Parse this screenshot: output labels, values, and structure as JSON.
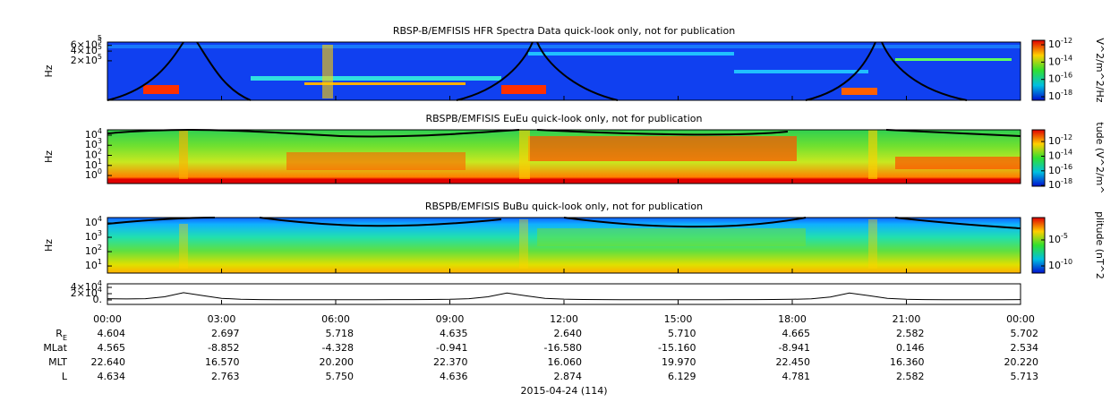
{
  "panels": [
    {
      "title": "RBSP-B/EMFISIS  HFR Spectra Data quick-look only, not for publication",
      "ylabel": "Hz",
      "ylim": [
        12000,
        760000
      ],
      "log": true,
      "yticks": [
        {
          "value": 760000,
          "exponent": "5"
        },
        {
          "value": 600000,
          "label": "6×10",
          "exponent": "5"
        },
        {
          "value": 400000,
          "label": "4×10",
          "exponent": "5"
        },
        {
          "value": 200000,
          "label": "2×10",
          "exponent": "5"
        }
      ],
      "colorbar": {
        "label": "V^2/m^2/Hz",
        "clim": [
          3.9e-19,
          3.3e-12
        ],
        "ticks": [
          {
            "value": 1e-12,
            "label": "10",
            "exponent": "-12"
          },
          {
            "value": 1e-14,
            "label": "10",
            "exponent": "-14"
          },
          {
            "value": 1e-16,
            "label": "10",
            "exponent": "-16"
          },
          {
            "value": 1e-18,
            "label": "10",
            "exponent": "-18"
          }
        ]
      }
    },
    {
      "title": "RBSPB/EMFISIS  EuEu quick-look only, not for publication",
      "ylabel": "Hz",
      "ylim": [
        0.16,
        34000
      ],
      "log": true,
      "yticks": [
        {
          "value": 10000,
          "label": "10",
          "exponent": "4"
        },
        {
          "value": 1000,
          "label": "10",
          "exponent": "3"
        },
        {
          "value": 100,
          "label": "10",
          "exponent": "2"
        },
        {
          "value": 10,
          "label": "10",
          "exponent": "1"
        },
        {
          "value": 1,
          "label": "10",
          "exponent": "0"
        }
      ],
      "colorbar": {
        "label": "tude (V^2/m^",
        "clim": [
          7.9e-19,
          4e-11
        ],
        "ticks": [
          {
            "value": 1e-12,
            "label": "10",
            "exponent": "-12"
          },
          {
            "value": 1e-14,
            "label": "10",
            "exponent": "-14"
          },
          {
            "value": 1e-16,
            "label": "10",
            "exponent": "-16"
          },
          {
            "value": 1e-18,
            "label": "10",
            "exponent": "-18"
          }
        ]
      }
    },
    {
      "title": "RBSPB/EMFISIS  BuBu quick-look only, not for publication",
      "ylabel": "Hz",
      "ylim": [
        3.2,
        23700
      ],
      "log": true,
      "yticks": [
        {
          "value": 10000,
          "label": "10",
          "exponent": "4"
        },
        {
          "value": 1000,
          "label": "10",
          "exponent": "3"
        },
        {
          "value": 100,
          "label": "10",
          "exponent": "2"
        },
        {
          "value": 10,
          "label": "10",
          "exponent": "1"
        }
      ],
      "colorbar": {
        "label": "plitude (nT^2",
        "clim": [
          4.2e-12,
          0.2
        ],
        "ticks": [
          {
            "value": 1e-05,
            "label": "10",
            "exponent": "-5"
          },
          {
            "value": 1e-10,
            "label": "10",
            "exponent": "-10"
          }
        ]
      }
    }
  ],
  "chart_data": {
    "type": "line",
    "ylim": [
      -14300,
      51400
    ],
    "yticks": [
      {
        "value": 40000,
        "label": "4×10",
        "exponent": "4"
      },
      {
        "value": 20000,
        "label": "2×10",
        "exponent": "4"
      },
      {
        "value": 0,
        "label": "0."
      }
    ],
    "values": [
      4000,
      3000,
      4000,
      10000,
      23000,
      14000,
      5000,
      2000,
      1000,
      800,
      700,
      700,
      800,
      800,
      900,
      1000,
      1200,
      1500,
      2000,
      4000,
      10000,
      22000,
      13000,
      5000,
      2500,
      1500,
      1000,
      800,
      700,
      700,
      800,
      800,
      900,
      1000,
      1200,
      1500,
      2000,
      3500,
      9000,
      22000,
      14000,
      5000,
      2000,
      1000,
      800,
      700,
      700,
      800,
      1000
    ],
    "color": "#000000"
  },
  "time_labels": [
    "00:00",
    "03:00",
    "06:00",
    "09:00",
    "12:00",
    "15:00",
    "18:00",
    "21:00",
    "00:00"
  ],
  "ephemeris": [
    {
      "label": "R",
      "subscript": "E",
      "values": [
        "4.604",
        "2.697",
        "5.718",
        "4.635",
        "2.640",
        "5.710",
        "4.665",
        "2.582",
        "5.702"
      ]
    },
    {
      "label": "MLat",
      "values": [
        "4.565",
        "-8.852",
        "-4.328",
        "-0.941",
        "-16.580",
        "-15.160",
        "-8.941",
        "0.146",
        "2.534"
      ]
    },
    {
      "label": "MLT",
      "values": [
        "22.640",
        "16.570",
        "20.200",
        "22.370",
        "16.060",
        "19.970",
        "22.450",
        "16.360",
        "20.220"
      ]
    },
    {
      "label": "L",
      "values": [
        "4.634",
        "2.763",
        "5.750",
        "4.636",
        "2.874",
        "6.129",
        "4.781",
        "2.582",
        "5.713"
      ]
    }
  ],
  "date": "2015-04-24 (114)"
}
